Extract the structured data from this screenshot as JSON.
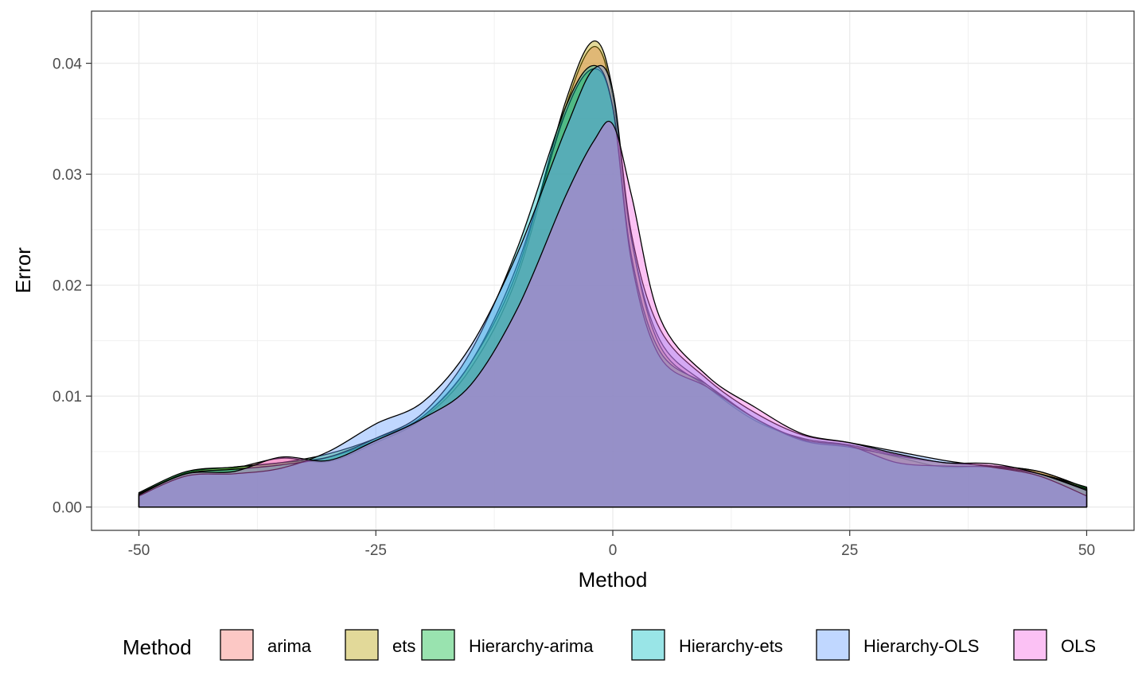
{
  "chart_data": {
    "type": "area",
    "subtype": "density",
    "xlabel": "Method",
    "ylabel": "Error",
    "xlim": [
      -55,
      55
    ],
    "ylim": [
      -0.0021,
      0.0447
    ],
    "x_ticks": [
      -50,
      -25,
      0,
      25,
      50
    ],
    "x_tick_labels": [
      "-50",
      "-25",
      "0",
      "25",
      "50"
    ],
    "y_ticks": [
      0,
      0.01,
      0.02,
      0.03,
      0.04
    ],
    "y_tick_labels": [
      "0.00",
      "0.01",
      "0.02",
      "0.03",
      "0.04"
    ],
    "grid": true,
    "legend": {
      "title": "Method",
      "position": "bottom"
    },
    "x": [
      -50,
      -45,
      -40,
      -35,
      -30,
      -25,
      -20,
      -15,
      -10,
      -5,
      -2,
      0,
      2,
      5,
      10,
      15,
      20,
      25,
      30,
      35,
      40,
      45,
      50
    ],
    "series": [
      {
        "name": "arima",
        "color": "#F8766D",
        "values": [
          0.0012,
          0.003,
          0.0035,
          0.0044,
          0.0041,
          0.0058,
          0.008,
          0.0125,
          0.021,
          0.036,
          0.0415,
          0.037,
          0.024,
          0.015,
          0.011,
          0.008,
          0.006,
          0.0055,
          0.0045,
          0.0036,
          0.0037,
          0.0032,
          0.0017
        ]
      },
      {
        "name": "ets",
        "color": "#B79F00",
        "values": [
          0.0012,
          0.0031,
          0.0036,
          0.004,
          0.0045,
          0.006,
          0.0082,
          0.013,
          0.0215,
          0.0365,
          0.042,
          0.0375,
          0.024,
          0.0145,
          0.0108,
          0.0078,
          0.0062,
          0.0056,
          0.0047,
          0.004,
          0.0037,
          0.0032,
          0.0017
        ]
      },
      {
        "name": "Hierarchy-arima",
        "color": "#00BA38",
        "values": [
          0.0013,
          0.0032,
          0.0036,
          0.004,
          0.0048,
          0.0062,
          0.0082,
          0.013,
          0.022,
          0.0355,
          0.0395,
          0.036,
          0.0225,
          0.014,
          0.011,
          0.008,
          0.006,
          0.0054,
          0.0046,
          0.004,
          0.0037,
          0.003,
          0.0018
        ]
      },
      {
        "name": "Hierarchy-ets",
        "color": "#00BFC4",
        "values": [
          0.0012,
          0.003,
          0.0034,
          0.0038,
          0.0045,
          0.0062,
          0.0085,
          0.014,
          0.0235,
          0.036,
          0.0398,
          0.036,
          0.022,
          0.0135,
          0.0108,
          0.008,
          0.0061,
          0.0055,
          0.004,
          0.0037,
          0.0036,
          0.003,
          0.0016
        ]
      },
      {
        "name": "Hierarchy-OLS",
        "color": "#619CFF",
        "values": [
          0.001,
          0.0028,
          0.003,
          0.0035,
          0.005,
          0.0075,
          0.0095,
          0.0145,
          0.023,
          0.034,
          0.0395,
          0.0375,
          0.0245,
          0.016,
          0.0115,
          0.0085,
          0.0065,
          0.0058,
          0.005,
          0.0042,
          0.0036,
          0.0028,
          0.001
        ]
      },
      {
        "name": "OLS",
        "color": "#F564E3",
        "values": [
          0.0011,
          0.003,
          0.0032,
          0.0045,
          0.0042,
          0.006,
          0.008,
          0.011,
          0.018,
          0.028,
          0.033,
          0.0345,
          0.028,
          0.017,
          0.0118,
          0.009,
          0.0066,
          0.0058,
          0.0048,
          0.004,
          0.0039,
          0.003,
          0.0015
        ]
      }
    ]
  }
}
